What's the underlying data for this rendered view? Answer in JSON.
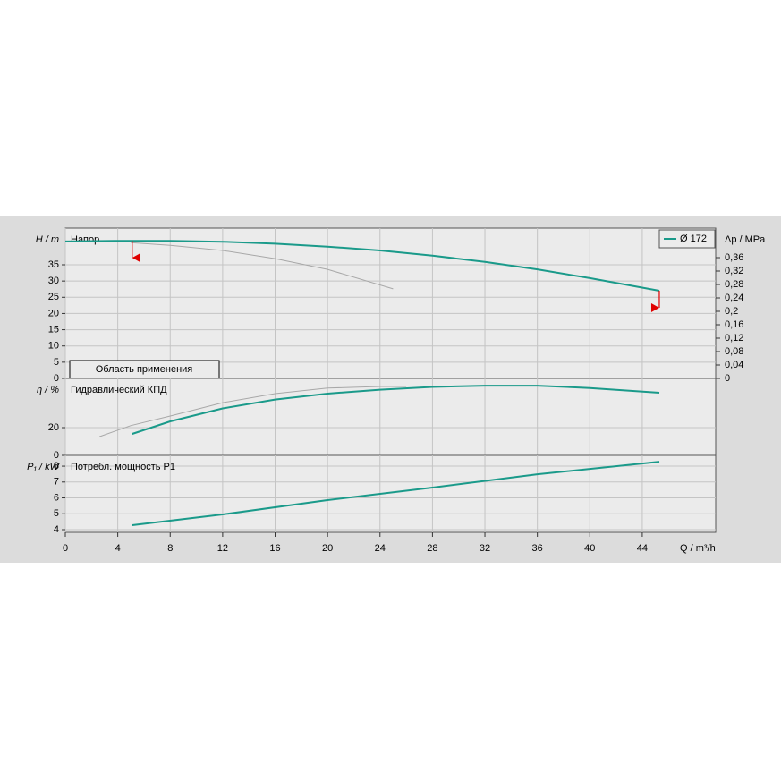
{
  "chart_data": [
    {
      "type": "line",
      "title": "Напор",
      "ylabel": "H / m",
      "y2label": "Δp / MPa",
      "ylim": [
        0,
        46.3
      ],
      "yticks": [
        0,
        5,
        10,
        15,
        20,
        25,
        30,
        35
      ],
      "y2lim": [
        0,
        0.448
      ],
      "y2ticks": [
        0,
        {
          "value": 0.04,
          "label": "0,04"
        },
        {
          "value": 0.08,
          "label": "0,08"
        },
        {
          "value": 0.12,
          "label": "0,12"
        },
        {
          "value": 0.16,
          "label": "0,16"
        },
        {
          "value": 0.2,
          "label": "0,2"
        },
        {
          "value": 0.24,
          "label": "0,24"
        },
        {
          "value": 0.28,
          "label": "0,28"
        },
        {
          "value": 0.32,
          "label": "0,32"
        },
        {
          "value": 0.36,
          "label": "0,36"
        }
      ],
      "grid": true,
      "legend": "upper right",
      "application_range": {
        "label": "Область применения",
        "x": [
          5.1,
          45.3
        ],
        "color": "#e00000"
      },
      "series": [
        {
          "name": "Ø 172",
          "color": "#1a9a8a",
          "x": [
            0,
            4,
            8,
            12,
            16,
            20,
            24,
            28,
            32,
            36,
            40,
            45.3
          ],
          "values": [
            42.2,
            42.4,
            42.4,
            42.1,
            41.5,
            40.6,
            39.4,
            37.8,
            35.9,
            33.6,
            30.9,
            27.0
          ]
        },
        {
          "color": "#a8a8a8",
          "x": [
            5,
            8,
            12,
            16,
            20,
            25
          ],
          "values": [
            41.8,
            41.0,
            39.4,
            36.9,
            33.6,
            27.6
          ]
        }
      ]
    },
    {
      "type": "line",
      "title": "Гидравлический КПД",
      "ylabel": "η / %",
      "ylim": [
        0,
        55.5
      ],
      "yticks": [
        0,
        20
      ],
      "grid": true,
      "series": [
        {
          "color": "#1a9a8a",
          "x": [
            5.1,
            8,
            12,
            16,
            20,
            24,
            28,
            32,
            36,
            40,
            45.3
          ],
          "values": [
            15.5,
            24.5,
            33.9,
            40.3,
            44.5,
            47.4,
            49.4,
            50.3,
            50.3,
            48.6,
            45.2
          ]
        },
        {
          "color": "#a8a8a8",
          "x": [
            2.6,
            5,
            8,
            12,
            16,
            20,
            24,
            26
          ],
          "values": [
            13.5,
            21.5,
            28.4,
            38,
            44.5,
            48.5,
            49.7,
            49.7
          ]
        }
      ]
    },
    {
      "type": "line",
      "title": "Потребл. мощность P1",
      "ylabel": "P₁ / kW",
      "xlabel": "Q / m³/h",
      "xlim": [
        0,
        49.6
      ],
      "xticks": [
        0,
        4,
        8,
        12,
        16,
        20,
        24,
        28,
        32,
        36,
        40,
        44
      ],
      "ylim": [
        3.83,
        8.68
      ],
      "yticks": [
        4,
        5,
        6,
        7,
        8
      ],
      "grid": true,
      "series": [
        {
          "color": "#1a9a8a",
          "x": [
            5.1,
            12,
            20,
            28,
            36,
            45.3
          ],
          "values": [
            4.28,
            4.96,
            5.86,
            6.65,
            7.49,
            8.28
          ]
        }
      ]
    }
  ]
}
